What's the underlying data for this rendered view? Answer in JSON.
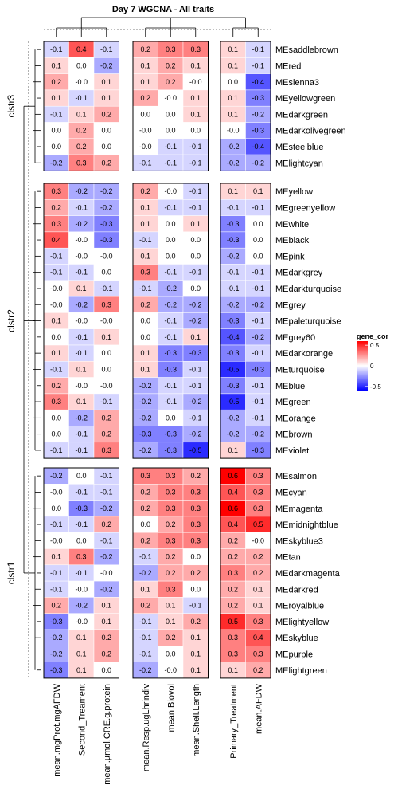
{
  "chart_data": {
    "type": "heatmap",
    "title": "Day 7 WGCNA - All traits",
    "legend": {
      "title": "gene_cor",
      "ticks": [
        "0.5",
        "0",
        "-0.5"
      ],
      "range": [
        -0.6,
        0.6
      ],
      "colors": {
        "low": "#0000ff",
        "mid": "#ffffff",
        "high": "#ff0000"
      },
      "placement": "right"
    },
    "columns": [
      "mean.mgProt.mgAFDW",
      "Second_Treament",
      "mean.µmol.CRE.g.protein",
      "mean.Resp.ugLhrindiv",
      "mean.Biovol",
      "mean.Shell.Length",
      "Primary_Treatment",
      "mean.AFDW"
    ],
    "column_groups": [
      [
        0,
        1,
        2
      ],
      [
        3,
        4,
        5
      ],
      [
        6,
        7
      ]
    ],
    "clusters": [
      {
        "name": "clstr3",
        "rows": [
          "MEsaddlebrown",
          "MEred",
          "MEsienna3",
          "MEyellowgreen",
          "MEdarkgreen",
          "MEdarkolivegreen",
          "MEsteelblue",
          "MElightcyan"
        ],
        "values": [
          [
            -0.1,
            0.4,
            -0.1,
            0.2,
            0.3,
            0.3,
            0.1,
            -0.1
          ],
          [
            0.1,
            0.0,
            -0.2,
            0.1,
            0.2,
            0.1,
            0.1,
            -0.1
          ],
          [
            0.2,
            -0.0,
            0.1,
            0.1,
            0.2,
            -0.0,
            0.0,
            -0.4
          ],
          [
            0.1,
            -0.1,
            0.1,
            0.2,
            -0.0,
            0.1,
            0.1,
            -0.3
          ],
          [
            -0.1,
            0.1,
            0.2,
            0.0,
            0.0,
            0.1,
            0.1,
            -0.2
          ],
          [
            0.0,
            0.2,
            0.0,
            -0.0,
            0.0,
            0.0,
            -0.0,
            -0.3
          ],
          [
            0.0,
            0.2,
            0.0,
            -0.0,
            -0.1,
            -0.1,
            -0.2,
            -0.4
          ],
          [
            -0.2,
            0.3,
            0.2,
            -0.1,
            -0.1,
            -0.1,
            -0.2,
            -0.2
          ]
        ]
      },
      {
        "name": "clstr2",
        "rows": [
          "MEyellow",
          "MEgreenyellow",
          "MEwhite",
          "MEblack",
          "MEpink",
          "MEdarkgrey",
          "MEdarkturquoise",
          "MEgrey",
          "MEpaleturquoise",
          "MEgrey60",
          "MEdarkorange",
          "MEturquoise",
          "MEblue",
          "MEgreen",
          "MEorange",
          "MEbrown",
          "MEviolet"
        ],
        "values": [
          [
            0.3,
            -0.2,
            -0.2,
            0.2,
            -0.0,
            -0.1,
            0.1,
            0.1
          ],
          [
            0.2,
            -0.1,
            -0.2,
            0.1,
            -0.1,
            -0.1,
            -0.1,
            -0.1
          ],
          [
            0.3,
            -0.2,
            -0.3,
            0.1,
            0.0,
            0.1,
            -0.3,
            0.0
          ],
          [
            0.4,
            -0.0,
            -0.3,
            -0.1,
            0.0,
            0.0,
            -0.3,
            0.0
          ],
          [
            -0.1,
            -0.0,
            -0.0,
            0.1,
            0.0,
            0.0,
            -0.2,
            0.0
          ],
          [
            -0.1,
            -0.1,
            0.0,
            0.3,
            -0.1,
            -0.1,
            -0.1,
            -0.1
          ],
          [
            -0.0,
            0.1,
            -0.1,
            -0.1,
            -0.2,
            0.0,
            -0.1,
            -0.1
          ],
          [
            -0.0,
            -0.2,
            0.3,
            0.2,
            -0.2,
            -0.2,
            -0.2,
            -0.2
          ],
          [
            0.1,
            -0.0,
            -0.0,
            0.0,
            -0.1,
            -0.2,
            -0.3,
            -0.1
          ],
          [
            0.0,
            -0.1,
            0.1,
            0.0,
            -0.1,
            0.1,
            -0.4,
            -0.2
          ],
          [
            0.1,
            -0.1,
            0.0,
            0.1,
            -0.3,
            -0.3,
            -0.3,
            -0.1
          ],
          [
            -0.1,
            0.1,
            0.0,
            0.1,
            -0.3,
            -0.1,
            -0.5,
            -0.3
          ],
          [
            0.2,
            -0.0,
            -0.0,
            -0.2,
            -0.1,
            -0.1,
            -0.3,
            -0.1
          ],
          [
            0.3,
            0.1,
            -0.1,
            -0.2,
            -0.1,
            -0.2,
            -0.5,
            -0.1
          ],
          [
            0.0,
            -0.2,
            0.2,
            -0.2,
            0.0,
            -0.1,
            -0.2,
            -0.1
          ],
          [
            0.0,
            -0.1,
            0.2,
            -0.3,
            -0.3,
            -0.2,
            -0.2,
            -0.2
          ],
          [
            -0.1,
            -0.1,
            0.3,
            -0.2,
            -0.3,
            -0.5,
            0.1,
            -0.3
          ]
        ]
      },
      {
        "name": "clstr1",
        "rows": [
          "MEsalmon",
          "MEcyan",
          "MEmagenta",
          "MEmidnightblue",
          "MEskyblue3",
          "MEtan",
          "MEdarkmagenta",
          "MEdarkred",
          "MEroyalblue",
          "MElightyellow",
          "MEskyblue",
          "MEpurple",
          "MElightgreen"
        ],
        "values": [
          [
            -0.2,
            0.0,
            -0.1,
            0.3,
            0.3,
            0.2,
            0.6,
            0.3
          ],
          [
            -0.0,
            -0.1,
            -0.1,
            0.2,
            0.3,
            0.3,
            0.4,
            0.3
          ],
          [
            0.0,
            -0.3,
            -0.2,
            0.2,
            0.3,
            0.3,
            0.6,
            0.3
          ],
          [
            -0.1,
            -0.1,
            0.2,
            0.0,
            0.2,
            0.3,
            0.4,
            0.5
          ],
          [
            -0.0,
            0.0,
            -0.1,
            0.2,
            0.3,
            0.3,
            0.2,
            -0.0
          ],
          [
            0.1,
            0.3,
            -0.2,
            -0.1,
            0.2,
            0.0,
            0.2,
            0.2
          ],
          [
            -0.1,
            -0.1,
            -0.0,
            -0.2,
            0.2,
            0.2,
            0.3,
            0.2
          ],
          [
            -0.1,
            -0.0,
            -0.2,
            0.1,
            0.3,
            0.0,
            0.2,
            0.1
          ],
          [
            0.2,
            -0.2,
            0.1,
            0.2,
            0.1,
            -0.1,
            0.2,
            0.1
          ],
          [
            -0.3,
            -0.0,
            0.1,
            -0.1,
            0.1,
            0.2,
            0.5,
            0.3
          ],
          [
            -0.2,
            0.1,
            0.2,
            -0.1,
            0.2,
            0.1,
            0.3,
            0.4
          ],
          [
            -0.2,
            0.1,
            0.2,
            -0.1,
            0.0,
            0.1,
            0.3,
            0.3
          ],
          [
            -0.3,
            0.1,
            0.0,
            -0.2,
            -0.0,
            0.1,
            0.1,
            0.2
          ]
        ]
      }
    ]
  }
}
